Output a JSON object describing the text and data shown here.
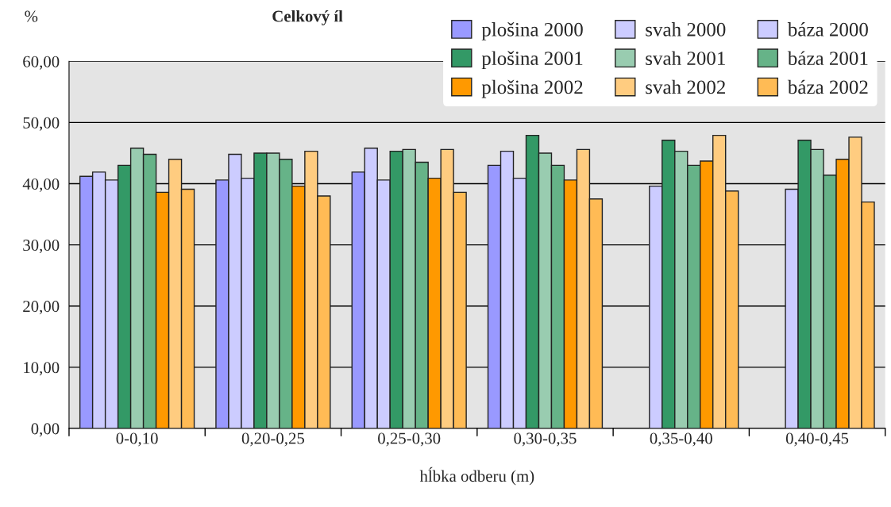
{
  "chart_data": {
    "type": "bar",
    "title": "Celkový íl",
    "ylabel": "%",
    "xlabel": "hĺbka odberu (m)",
    "categories": [
      "0-0,10",
      "0,20-0,25",
      "0,25-0,30",
      "0,30-0,35",
      "0,35-0,40",
      "0,40-0,45"
    ],
    "series": [
      {
        "name": "plošina 2000",
        "color": "#9999ff",
        "values": [
          41.2,
          40.6,
          41.9,
          43.0,
          null,
          null
        ]
      },
      {
        "name": "svah 2000",
        "color": "#ccccff",
        "values": [
          41.9,
          44.8,
          45.8,
          45.3,
          null,
          null
        ]
      },
      {
        "name": "báza 2000",
        "color": "#ccccff",
        "values": [
          40.6,
          40.9,
          40.6,
          40.9,
          39.6,
          39.1
        ]
      },
      {
        "name": "plošina 2001",
        "color": "#339966",
        "values": [
          43.0,
          45.0,
          45.3,
          47.9,
          47.1,
          47.1
        ]
      },
      {
        "name": "svah 2001",
        "color": "#99ccb0",
        "values": [
          45.8,
          45.0,
          45.6,
          45.0,
          45.3,
          45.6
        ]
      },
      {
        "name": "báza 2001",
        "color": "#66b388",
        "values": [
          44.8,
          44.0,
          43.5,
          43.0,
          43.0,
          41.4
        ]
      },
      {
        "name": "plošina 2002",
        "color": "#ff9900",
        "values": [
          38.6,
          39.6,
          40.9,
          40.6,
          43.7,
          44.0
        ]
      },
      {
        "name": "svah 2002",
        "color": "#ffcc80",
        "values": [
          44.0,
          45.3,
          45.6,
          45.6,
          47.9,
          47.6
        ]
      },
      {
        "name": "báza 2002",
        "color": "#ffbb55",
        "values": [
          39.1,
          38.0,
          38.6,
          37.5,
          38.8,
          37.0
        ]
      }
    ],
    "ylim": [
      0,
      60
    ],
    "yticks": [
      {
        "value": 0,
        "label": "0,00"
      },
      {
        "value": 10,
        "label": "10,00"
      },
      {
        "value": 20,
        "label": "20,00"
      },
      {
        "value": 30,
        "label": "30,00"
      },
      {
        "value": 40,
        "label": "40,00"
      },
      {
        "value": 50,
        "label": "50,00"
      },
      {
        "value": 60,
        "label": "60,00"
      }
    ],
    "grid": "y",
    "legend": "top right"
  }
}
